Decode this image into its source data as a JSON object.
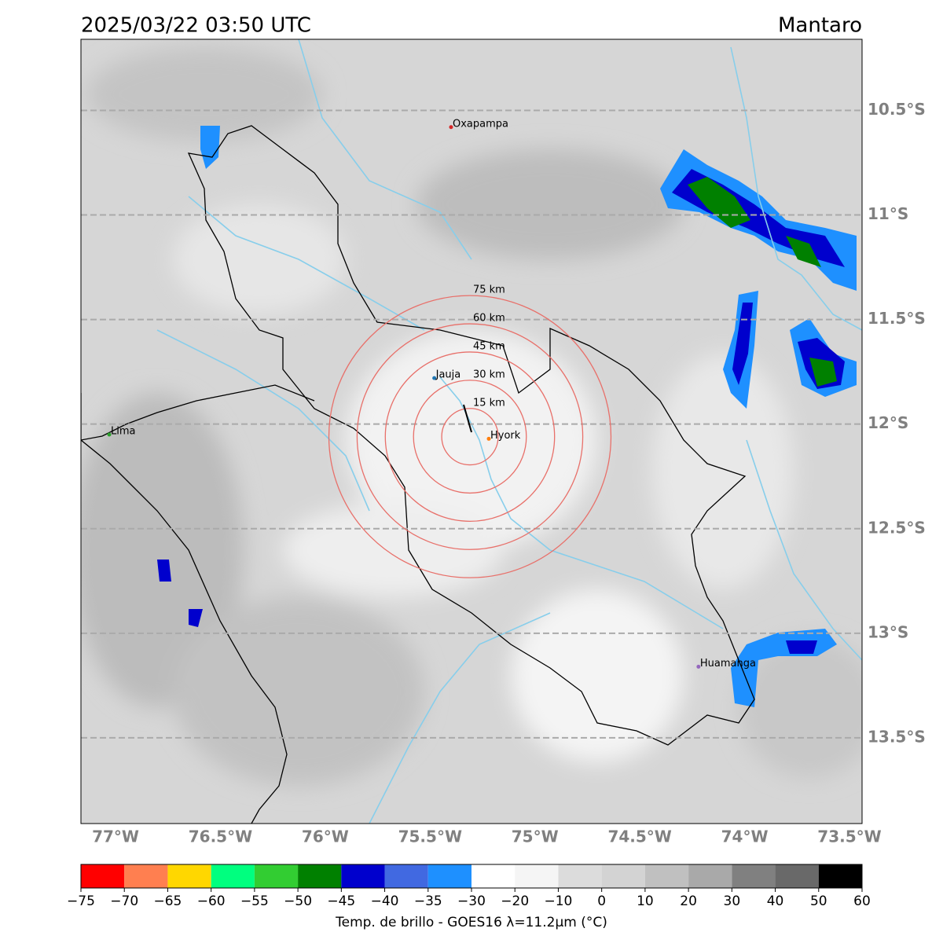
{
  "map": {
    "title": "2025/03/22 03:50 UTC",
    "region": "Mantaro",
    "xlim": [
      -77.165,
      -73.44
    ],
    "ylim": [
      -13.91,
      -10.16
    ],
    "xticks": [
      {
        "value": -77,
        "label": "77°W"
      },
      {
        "value": -76.5,
        "label": "76.5°W"
      },
      {
        "value": -76,
        "label": "76°W"
      },
      {
        "value": -75.5,
        "label": "75.5°W"
      },
      {
        "value": -75,
        "label": "75°W"
      },
      {
        "value": -74.5,
        "label": "74.5°W"
      },
      {
        "value": -74,
        "label": "74°W"
      },
      {
        "value": -73.5,
        "label": "73.5°W"
      }
    ],
    "yticks": [
      {
        "value": -10.5,
        "label": "10.5°S"
      },
      {
        "value": -11,
        "label": "11°S"
      },
      {
        "value": -11.5,
        "label": "11.5°S"
      },
      {
        "value": -12,
        "label": "12°S"
      },
      {
        "value": -12.5,
        "label": "12.5°S"
      },
      {
        "value": -13,
        "label": "13°S"
      },
      {
        "value": -13.5,
        "label": "13.5°S"
      }
    ],
    "cities": [
      {
        "name": "Oxapampa",
        "lon": -75.4,
        "lat": -10.58,
        "color": "#d62728"
      },
      {
        "name": "Jauja",
        "lon": -75.48,
        "lat": -11.78,
        "color": "#1f77b4"
      },
      {
        "name": "Hyork",
        "lon": -75.22,
        "lat": -12.07,
        "color": "#ff7f0e"
      },
      {
        "name": "Lima",
        "lon": -77.03,
        "lat": -12.05,
        "color": "#2ca02c"
      },
      {
        "name": "Huamanga",
        "lon": -74.22,
        "lat": -13.16,
        "color": "#9467bd"
      }
    ],
    "ring_center": {
      "lon": -75.31,
      "lat": -12.06
    },
    "rings": [
      {
        "value": 15,
        "label": "15 km"
      },
      {
        "value": 30,
        "label": "30 km"
      },
      {
        "value": 45,
        "label": "45 km"
      },
      {
        "value": 60,
        "label": "60 km"
      },
      {
        "value": 75,
        "label": "75 km"
      }
    ],
    "ring_color": "#e8706a",
    "colorbar": {
      "label": "Temp. de brillo - GOES16 λ=11.2μm (°C)",
      "ticks": [
        {
          "value": -75,
          "label": "−75"
        },
        {
          "value": -70,
          "label": "−70"
        },
        {
          "value": -65,
          "label": "−65"
        },
        {
          "value": -60,
          "label": "−60"
        },
        {
          "value": -55,
          "label": "−55"
        },
        {
          "value": -50,
          "label": "−50"
        },
        {
          "value": -45,
          "label": "−45"
        },
        {
          "value": -40,
          "label": "−40"
        },
        {
          "value": -35,
          "label": "−35"
        },
        {
          "value": -30,
          "label": "−30"
        },
        {
          "value": -20,
          "label": "−20"
        },
        {
          "value": -10,
          "label": "−10"
        },
        0,
        10,
        20,
        30,
        40,
        50,
        60
      ],
      "colors": [
        "#ff0000",
        "#ff7f50",
        "#ffd700",
        "#00ff7f",
        "#32cd32",
        "#008000",
        "#0000cd",
        "#4169e1",
        "#1e90ff",
        "#ffffff",
        "#f5f5f5",
        "#dcdcdc",
        "#d3d3d3",
        "#c0c0c0",
        "#a9a9a9",
        "#808080",
        "#696969",
        "#000000"
      ]
    }
  }
}
